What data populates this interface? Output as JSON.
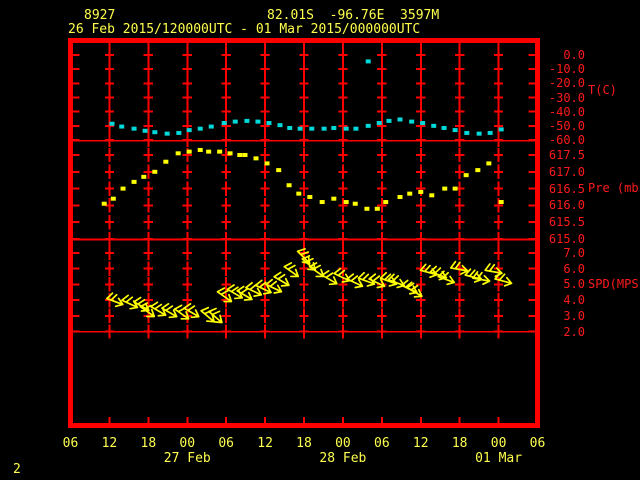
{
  "header": {
    "station_id": "8927",
    "position": "82.01S  -96.76E  3597M",
    "time_range": "26 Feb 2015/120000UTC - 01 Mar 2015/000000UTC"
  },
  "page_number": "2",
  "colors": {
    "background": "#000000",
    "frame_red": "#ff0000",
    "label_red": "#ff1a1a",
    "header_yellow": "#ffff4d",
    "data_yellow": "#ffff00",
    "temperature_cyan": "#00d9d9"
  },
  "x_axis": {
    "hour_labels": [
      "06",
      "12",
      "18",
      "00",
      "06",
      "12",
      "18",
      "00",
      "06",
      "12",
      "18",
      "00",
      "06"
    ],
    "date_labels": [
      {
        "label": "27 Feb",
        "tick": 3
      },
      {
        "label": "28 Feb",
        "tick": 7
      },
      {
        "label": "01 Mar",
        "tick": 11
      }
    ]
  },
  "chart_data": [
    {
      "type": "scatter",
      "name": "temperature",
      "ylabel": "T(C)",
      "yticks": [
        "0.0",
        "-10.0",
        "-20.0",
        "-30.0",
        "-40.0",
        "-50.0",
        "-60.0"
      ],
      "ylim": [
        -60,
        0
      ],
      "t_hours": [
        6.4,
        7.9,
        9.8,
        11.5,
        13.0,
        14.9,
        16.7,
        18.3,
        20.0,
        21.7,
        23.7,
        25.4,
        27.2,
        28.9,
        30.6,
        32.3,
        33.8,
        35.4,
        37.2,
        39.1,
        40.6,
        42.5,
        44.0,
        45.9,
        47.6,
        49.1,
        50.8,
        52.6,
        54.3,
        56.0,
        57.6,
        59.3,
        61.1,
        63.0,
        64.7,
        66.4
      ],
      "values": [
        -48.5,
        -50.5,
        -52,
        -53.5,
        -54.5,
        -55.5,
        -55,
        -53,
        -52,
        -50.5,
        -48,
        -47,
        -46.5,
        -47,
        -48,
        -49.5,
        -51.5,
        -52,
        -52,
        -52,
        -51.5,
        -52,
        -52,
        -50,
        -48,
        -46.5,
        -45.5,
        -47,
        -48,
        -50,
        -51.5,
        -53,
        -55,
        -55.5,
        -55,
        -52.5
      ],
      "outliers": [
        {
          "t": 45.9,
          "v": -4.5
        }
      ]
    },
    {
      "type": "scatter",
      "name": "pressure",
      "ylabel": "Pre (mb)",
      "yticks": [
        "617.5",
        "617.0",
        "616.5",
        "616.0",
        "615.5",
        "615.0"
      ],
      "ylim": [
        615.0,
        617.5
      ],
      "t_hours": [
        5.2,
        6.6,
        8.1,
        9.8,
        11.3,
        13.0,
        14.7,
        16.6,
        18.3,
        20.0,
        21.3,
        23.0,
        24.6,
        26.1,
        26.9,
        28.6,
        30.3,
        32.1,
        33.7,
        35.2,
        36.9,
        38.8,
        40.6,
        42.5,
        43.9,
        45.7,
        47.3,
        48.6,
        50.8,
        52.3,
        54.0,
        55.7,
        57.7,
        59.3,
        61.0,
        62.8,
        64.5,
        66.4
      ],
      "values": [
        616.05,
        616.2,
        616.5,
        616.7,
        616.85,
        617.0,
        617.3,
        617.55,
        617.6,
        617.65,
        617.6,
        617.6,
        617.55,
        617.5,
        617.5,
        617.4,
        617.25,
        617.05,
        616.6,
        616.35,
        616.25,
        616.1,
        616.2,
        616.1,
        616.05,
        615.9,
        615.9,
        616.1,
        616.25,
        616.35,
        616.4,
        616.3,
        616.5,
        616.5,
        616.9,
        617.05,
        617.25,
        616.1
      ]
    },
    {
      "type": "wind-barb",
      "name": "wind-speed",
      "ylabel": "SPD(MPS)",
      "yticks": [
        "7.0",
        "6.0",
        "5.0",
        "4.0",
        "3.0",
        "2.0"
      ],
      "ylim": [
        2.0,
        7.0
      ],
      "t_hours": [
        6.9,
        9.2,
        11.0,
        11.9,
        13.6,
        15.3,
        17.2,
        18.7,
        21.2,
        22.4,
        23.8,
        25.4,
        26.9,
        28.3,
        29.8,
        31.4,
        32.6,
        34.1,
        36.0,
        36.8,
        38.0,
        40.0,
        41.9,
        43.9,
        45.7,
        47.3,
        49.1,
        50.3,
        52.3,
        53.1,
        55.3,
        56.8,
        58.0,
        60.0,
        62.2,
        63.4,
        65.3,
        66.8
      ],
      "values": [
        3.9,
        3.75,
        3.6,
        3.25,
        3.3,
        3.2,
        3.1,
        3.2,
        2.95,
        2.9,
        4.2,
        4.4,
        4.3,
        4.55,
        4.7,
        4.75,
        5.2,
        5.8,
        6.7,
        6.25,
        5.8,
        5.3,
        5.45,
        5.1,
        5.2,
        5.1,
        5.2,
        5.1,
        4.7,
        4.5,
        5.75,
        5.6,
        5.3,
        5.95,
        5.45,
        5.3,
        5.8,
        5.2
      ],
      "angles_deg": [
        20,
        25,
        30,
        35,
        30,
        30,
        35,
        30,
        40,
        40,
        35,
        30,
        30,
        25,
        25,
        25,
        30,
        35,
        45,
        40,
        35,
        30,
        25,
        25,
        20,
        25,
        20,
        20,
        25,
        30,
        15,
        20,
        20,
        10,
        15,
        10,
        10,
        15
      ]
    }
  ]
}
